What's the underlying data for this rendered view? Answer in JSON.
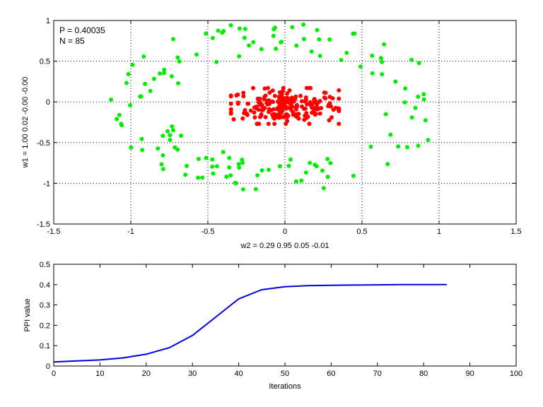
{
  "chart_data": [
    {
      "type": "scatter",
      "title": "",
      "xlabel": "w2 = 0.29  0.95  0.05  -0.01",
      "ylabel": "w1 = 1.00  0.02  -0.00  -0.00",
      "xlim": [
        -1.5,
        1.5
      ],
      "ylim": [
        -1.5,
        1
      ],
      "xticks": [
        "-1.5",
        "-1",
        "-0.5",
        "0",
        "0.5",
        "1",
        "1.5"
      ],
      "yticks": [
        "-1.5",
        "-1",
        "-0.5",
        "0",
        "0.5",
        "1"
      ],
      "grid": "dotted",
      "annotations": [
        "P = 0.40035",
        "N = 85"
      ],
      "series": [
        {
          "color": "#00ee00",
          "shape": "ring",
          "count": 140,
          "center": [
            -0.05,
            -0.05
          ],
          "radius_x": [
            0.7,
            1.1
          ],
          "radius_y": [
            0.65,
            1.05
          ]
        },
        {
          "color": "#ff0000",
          "shape": "ellipse-blob",
          "count": 220,
          "center": [
            0.0,
            -0.05
          ],
          "radius_x": 0.35,
          "radius_y": 0.22
        }
      ]
    },
    {
      "type": "line",
      "title": "",
      "xlabel": "Iterations",
      "ylabel": "PPI value",
      "xlim": [
        0,
        100
      ],
      "ylim": [
        0,
        0.5
      ],
      "xticks": [
        "0",
        "10",
        "20",
        "30",
        "40",
        "50",
        "60",
        "70",
        "80",
        "90",
        "100"
      ],
      "yticks": [
        "0",
        "0.1",
        "0.2",
        "0.3",
        "0.4",
        "0.5"
      ],
      "grid": "off",
      "series": [
        {
          "color": "#0000dd",
          "x": [
            0,
            5,
            10,
            15,
            20,
            25,
            30,
            35,
            40,
            45,
            50,
            55,
            60,
            65,
            70,
            75,
            80,
            85
          ],
          "y": [
            0.02,
            0.025,
            0.03,
            0.04,
            0.058,
            0.09,
            0.15,
            0.24,
            0.33,
            0.375,
            0.39,
            0.395,
            0.397,
            0.398,
            0.399,
            0.4,
            0.4,
            0.40035
          ]
        }
      ]
    }
  ]
}
